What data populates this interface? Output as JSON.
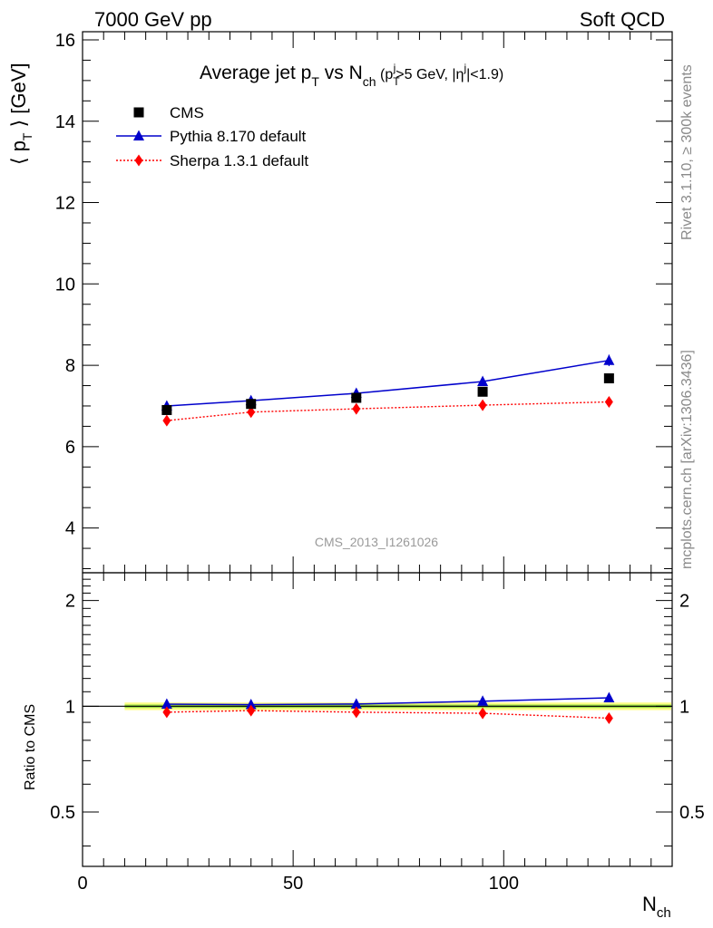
{
  "header": {
    "left": "7000 GeV pp",
    "right": "Soft QCD"
  },
  "title": {
    "main": "Average jet p",
    "main_sub": "T",
    "vs": " vs N",
    "vs_sub": "ch",
    "cut_open": " (p",
    "cut_sub": "T",
    "cut_sup": "j",
    "cut_mid": ">5 GeV, |η",
    "cut_sup2": "j",
    "cut_close": "|<1.9)"
  },
  "side_labels": {
    "rivet": "Rivet 3.1.10, ≥ 300k events",
    "mcplots": "mcplots.cern.ch [arXiv:1306.3436]"
  },
  "watermark": "CMS_2013_I1261026",
  "colors": {
    "cms": "#000000",
    "pythia": "#0000cc",
    "sherpa": "#ff0000",
    "band_outer": "#ffff88",
    "band_inner": "#99dd44"
  },
  "chart_data": [
    {
      "type": "scatter",
      "panel": "main",
      "xlabel": "N",
      "xlabel_sub": "ch",
      "ylabel": "⟨ p",
      "ylabel_sub": "T",
      "ylabel_unit": " ⟩ [GeV]",
      "xlim": [
        0,
        140
      ],
      "ylim": [
        2.9,
        16.2
      ],
      "x_ticks": [
        0,
        50,
        100
      ],
      "y_ticks": [
        4,
        6,
        8,
        10,
        12,
        14,
        16
      ],
      "legend_position": "top-left",
      "series": [
        {
          "name": "CMS",
          "marker": "square",
          "x": [
            20,
            40,
            65,
            95,
            125
          ],
          "values": [
            6.9,
            7.05,
            7.2,
            7.35,
            7.68
          ],
          "errors": [
            0.05,
            0.05,
            0.05,
            0.07,
            0.08
          ]
        },
        {
          "name": "Pythia 8.170 default",
          "marker": "triangle",
          "line": "solid",
          "x": [
            20,
            40,
            65,
            95,
            125
          ],
          "values": [
            7.0,
            7.13,
            7.31,
            7.6,
            8.12
          ],
          "errors": [
            0.03,
            0.03,
            0.04,
            0.06,
            0.14
          ]
        },
        {
          "name": "Sherpa 1.3.1 default",
          "marker": "diamond",
          "line": "dotted",
          "x": [
            20,
            40,
            65,
            95,
            125
          ],
          "values": [
            6.64,
            6.85,
            6.93,
            7.02,
            7.1
          ],
          "errors": [
            0.03,
            0.03,
            0.04,
            0.05,
            0.08
          ]
        }
      ]
    },
    {
      "type": "line",
      "panel": "ratio",
      "ylabel": "Ratio to CMS",
      "ylim": [
        0.35,
        2.4
      ],
      "y_scale": "log",
      "y_ticks": [
        0.5,
        1,
        2
      ],
      "x": [
        20,
        40,
        65,
        95,
        125
      ],
      "band": {
        "x": [
          10,
          140
        ],
        "low": 0.975,
        "high": 1.025
      },
      "series": [
        {
          "name": "Pythia 8.170 default",
          "values": [
            1.014,
            1.011,
            1.015,
            1.034,
            1.057
          ]
        },
        {
          "name": "Sherpa 1.3.1 default",
          "values": [
            0.962,
            0.972,
            0.962,
            0.955,
            0.925
          ]
        }
      ]
    }
  ]
}
